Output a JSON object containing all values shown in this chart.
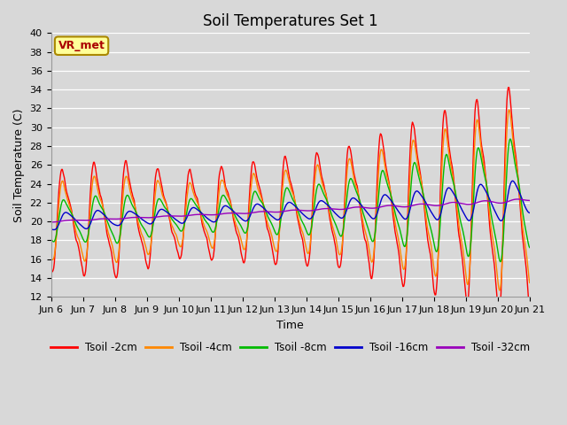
{
  "title": "Soil Temperatures Set 1",
  "xlabel": "Time",
  "ylabel": "Soil Temperature (C)",
  "ylim": [
    12,
    40
  ],
  "yticks": [
    12,
    14,
    16,
    18,
    20,
    22,
    24,
    26,
    28,
    30,
    32,
    34,
    36,
    38,
    40
  ],
  "xtick_labels": [
    "Jun 6",
    "Jun 7",
    "Jun 8",
    "Jun 9",
    "Jun 10",
    "Jun 11",
    "Jun 12",
    "Jun 13",
    "Jun 14",
    "Jun 15",
    "Jun 16",
    "Jun 17",
    "Jun 18",
    "Jun 19",
    "Jun 20",
    "Jun 21"
  ],
  "annotation_text": "VR_met",
  "background_color": "#d8d8d8",
  "plot_bg_color": "#d8d8d8",
  "colors": {
    "Tsoil -2cm": "#ff0000",
    "Tsoil -4cm": "#ff8800",
    "Tsoil -8cm": "#00bb00",
    "Tsoil -16cm": "#0000cc",
    "Tsoil -32cm": "#9900bb"
  },
  "legend_labels": [
    "Tsoil -2cm",
    "Tsoil -4cm",
    "Tsoil -8cm",
    "Tsoil -16cm",
    "Tsoil -32cm"
  ],
  "title_fontsize": 12,
  "label_fontsize": 9,
  "tick_fontsize": 8
}
